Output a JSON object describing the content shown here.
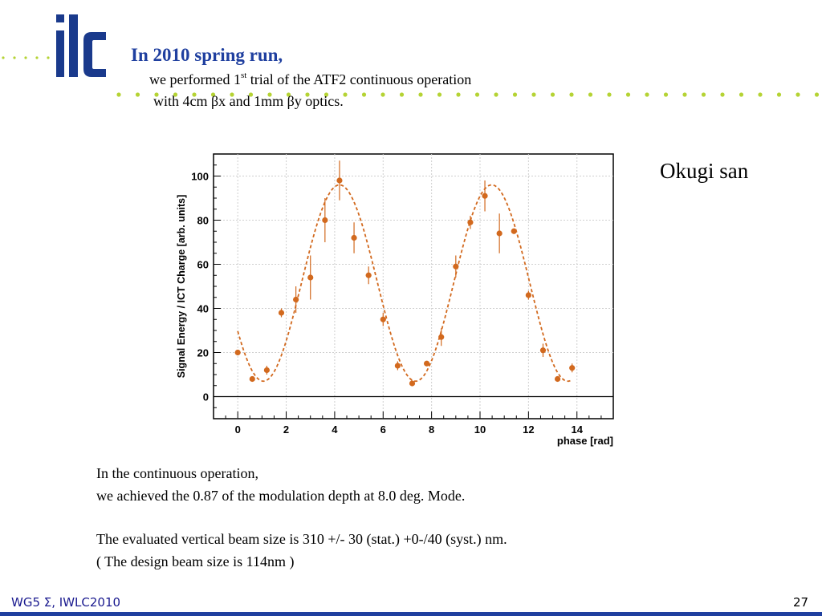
{
  "slide": {
    "title": "In 2010 spring run,",
    "line1_pre": "we performed 1",
    "line1_sup": "st",
    "line1_post": " trial of the ATF2 continuous operation",
    "line2": "with 4cm βx and 1mm βy optics.",
    "author": "Okugi san",
    "body1": "In the continuous operation,",
    "body2": "we achieved the 0.87 of the modulation depth at 8.0 deg. Mode.",
    "body3": "The evaluated vertical beam size is 310 +/- 30 (stat.) +0-/40 (syst.) nm.",
    "body4": "( The design beam size is 114nm )",
    "footer_left": "WG5 Σ, IWLC2010",
    "page_number": "27"
  },
  "colors": {
    "title": "#1f3f9f",
    "marker": "#d2691e",
    "curve": "#d2691e",
    "dot_green": "#b5d334",
    "dot_blue": "#3a5fcd"
  },
  "logo": {
    "text": "ilc"
  },
  "chart_data": {
    "type": "scatter",
    "xlabel": "phase [rad]",
    "ylabel": "Signal Energy / ICT Charge [arb. units]",
    "xlim": [
      -1,
      15.5
    ],
    "ylim": [
      -10,
      110
    ],
    "xticks": [
      0,
      2,
      4,
      6,
      8,
      10,
      12,
      14
    ],
    "yticks": [
      0,
      20,
      40,
      60,
      80,
      100
    ],
    "grid": true,
    "series": [
      {
        "points": [
          {
            "x": 0.0,
            "y": 20,
            "err": 1
          },
          {
            "x": 0.6,
            "y": 8,
            "err": 1
          },
          {
            "x": 1.2,
            "y": 12,
            "err": 2
          },
          {
            "x": 1.8,
            "y": 38,
            "err": 2
          },
          {
            "x": 2.4,
            "y": 44,
            "err": 6
          },
          {
            "x": 3.0,
            "y": 54,
            "err": 10
          },
          {
            "x": 3.6,
            "y": 80,
            "err": 10
          },
          {
            "x": 4.2,
            "y": 98,
            "err": 9
          },
          {
            "x": 4.8,
            "y": 72,
            "err": 7
          },
          {
            "x": 5.4,
            "y": 55,
            "err": 4
          },
          {
            "x": 6.0,
            "y": 35,
            "err": 3
          },
          {
            "x": 6.6,
            "y": 14,
            "err": 2
          },
          {
            "x": 7.2,
            "y": 6,
            "err": 1
          },
          {
            "x": 7.8,
            "y": 15,
            "err": 1
          },
          {
            "x": 8.4,
            "y": 27,
            "err": 4
          },
          {
            "x": 9.0,
            "y": 59,
            "err": 5
          },
          {
            "x": 9.6,
            "y": 79,
            "err": 3
          },
          {
            "x": 10.2,
            "y": 91,
            "err": 7
          },
          {
            "x": 10.8,
            "y": 74,
            "err": 9
          },
          {
            "x": 11.4,
            "y": 75,
            "err": 1
          },
          {
            "x": 12.0,
            "y": 46,
            "err": 2
          },
          {
            "x": 12.6,
            "y": 21,
            "err": 3
          },
          {
            "x": 13.2,
            "y": 8,
            "err": 1
          },
          {
            "x": 13.8,
            "y": 13,
            "err": 2
          }
        ]
      }
    ],
    "fit": {
      "form": "A + B*cos(x - phi)",
      "A": 51.5,
      "B": 44.5,
      "phi": 4.2,
      "x_range": [
        0,
        13.8
      ]
    }
  }
}
